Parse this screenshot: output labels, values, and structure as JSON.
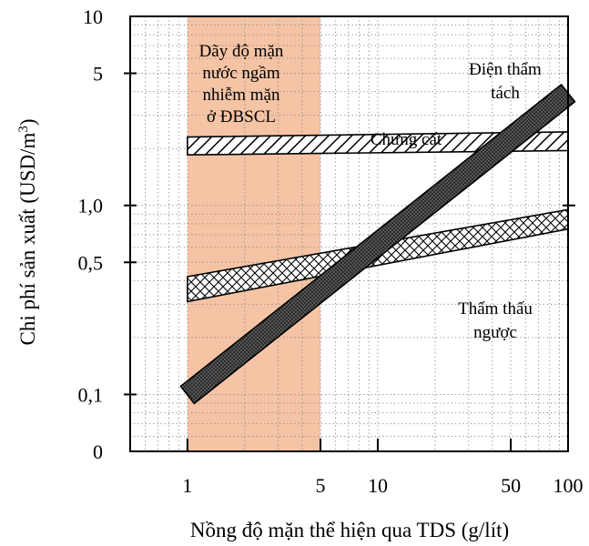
{
  "chart_data": {
    "type": "line",
    "xlabel": "Nồng độ mặn thể hiện qua TDS (g/lít)",
    "ylabel": "Chi phí sản xuất (USD/m",
    "ylabel_sup": "3",
    "ylabel_close": ")",
    "x_scale": "log",
    "y_scale": "log",
    "xlim": [
      0.5,
      100
    ],
    "ylim": [
      0.05,
      10
    ],
    "grid": true,
    "x_ticks": [
      {
        "value": 1,
        "label": "1"
      },
      {
        "value": 5,
        "label": "5"
      },
      {
        "value": 10,
        "label": "10"
      },
      {
        "value": 50,
        "label": "50"
      },
      {
        "value": 100,
        "label": "100"
      }
    ],
    "y_ticks": [
      {
        "value": 0.05,
        "label": "0"
      },
      {
        "value": 0.1,
        "label": "0,1"
      },
      {
        "value": 0.5,
        "label": "0,5"
      },
      {
        "value": 1.0,
        "label": "1,0"
      },
      {
        "value": 5,
        "label": "5"
      },
      {
        "value": 10,
        "label": "10"
      }
    ],
    "shaded_region": {
      "x_range": [
        1,
        5
      ],
      "color": "#f5c4a5",
      "label_lines": [
        "Dãy độ mặn",
        "nước ngầm",
        "nhiễm mặn",
        "ở ĐBSCL"
      ]
    },
    "series": [
      {
        "name": "Chưng cất",
        "label_lines": [
          "Chưng cất"
        ],
        "pattern": "diagonal-hatch",
        "x": [
          1,
          100
        ],
        "y_low": [
          1.85,
          1.95
        ],
        "y_high": [
          2.3,
          2.45
        ]
      },
      {
        "name": "Thẩm thấu ngược",
        "label_lines": [
          "Thẩm thấu",
          "ngược"
        ],
        "pattern": "crosshatch",
        "x": [
          1,
          100
        ],
        "y_low": [
          0.31,
          0.75
        ],
        "y_high": [
          0.42,
          0.95
        ]
      },
      {
        "name": "Điện thẩm tách",
        "label_lines": [
          "Điện thẩm",
          "tách"
        ],
        "pattern": "dense-dots-dark",
        "x": [
          1,
          100
        ],
        "y_low": [
          0.09,
          3.5
        ],
        "y_high": [
          0.11,
          4.4
        ]
      }
    ]
  }
}
